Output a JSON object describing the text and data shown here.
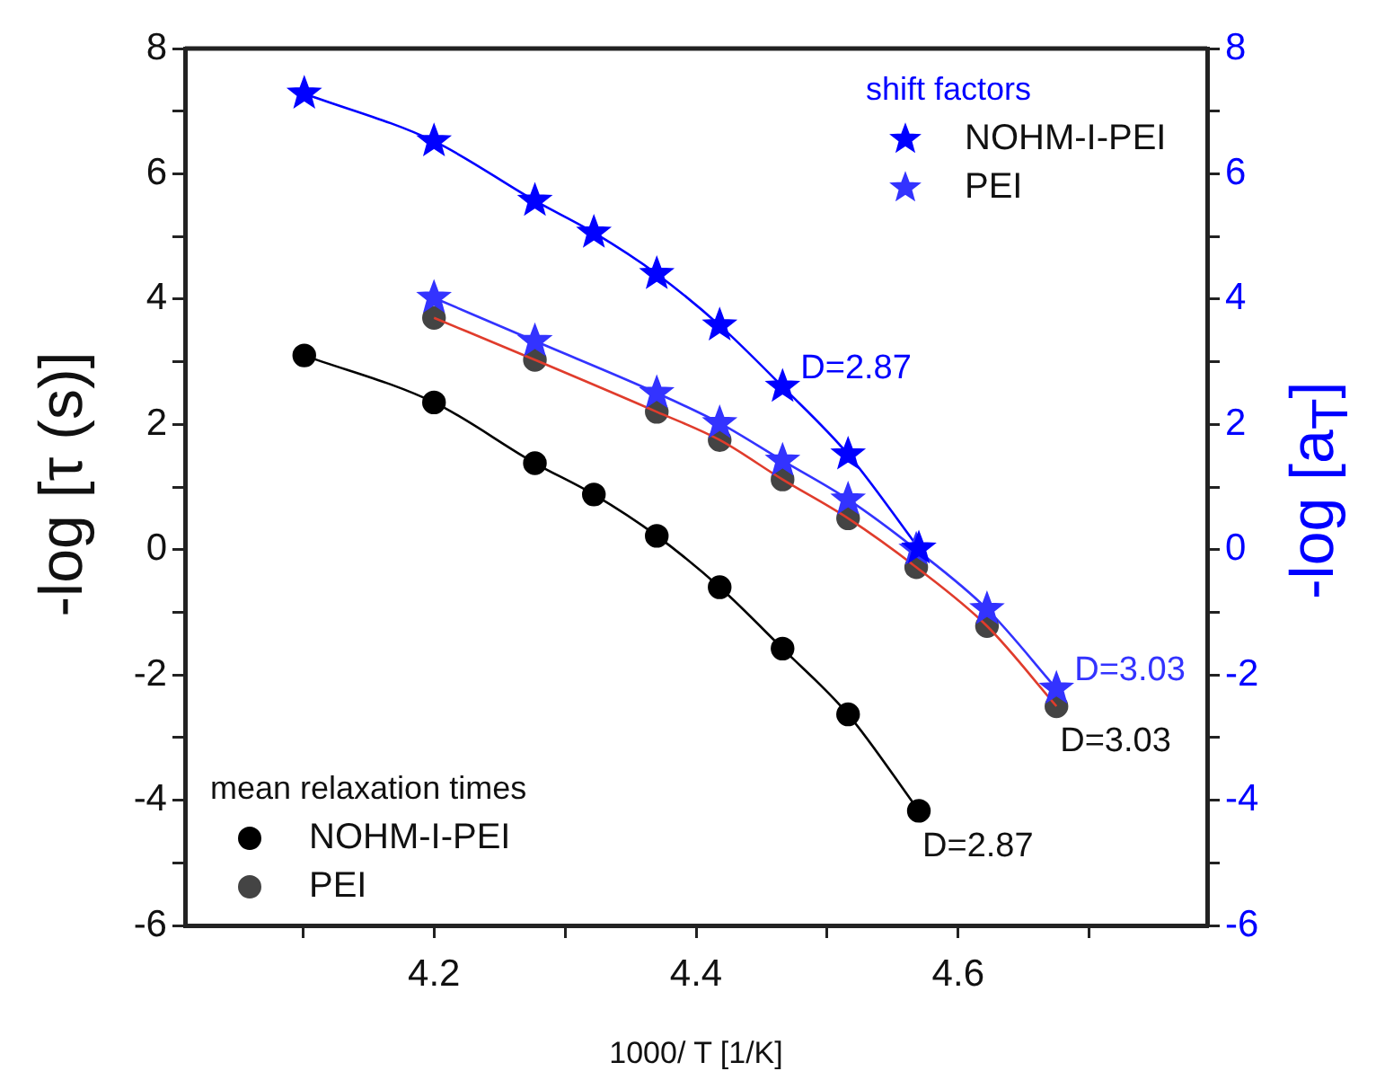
{
  "chart_data": {
    "type": "scatter",
    "xlabel": "1000/ T [1/K]",
    "ylabel": "-log [τ (s)]",
    "y2label": "-log [a$_{T}$]",
    "legend_title": [
      "mean relaxation times",
      "shift factors"
    ],
    "legend": [
      "bottom left",
      "top right"
    ],
    "xlim": [
      4.01,
      4.79
    ],
    "xticks": [
      {
        "value": 4.1,
        "label": null
      },
      4.2,
      {
        "value": 4.3,
        "label": null
      },
      4.4,
      {
        "value": 4.5,
        "label": null
      },
      4.6,
      {
        "value": 4.7,
        "label": null
      }
    ],
    "ylim": [
      -6,
      8
    ],
    "yticks": [
      -6,
      {
        "value": -5,
        "label": null
      },
      -4,
      {
        "value": -3,
        "label": null
      },
      -2,
      {
        "value": -1,
        "label": null
      },
      0,
      {
        "value": 1,
        "label": null
      },
      2,
      {
        "value": 3,
        "label": null
      },
      4,
      {
        "value": 5,
        "label": null
      },
      6,
      {
        "value": 7,
        "label": null
      },
      8
    ],
    "y2lim": [
      -6,
      8
    ],
    "y2ticks": [
      -6,
      {
        "value": -5,
        "label": null
      },
      -4,
      {
        "value": -3,
        "label": null
      },
      -2,
      {
        "value": -1,
        "label": null
      },
      0,
      {
        "value": 1,
        "label": null
      },
      2,
      {
        "value": 3,
        "label": null
      },
      4,
      {
        "value": 5,
        "label": null
      },
      6,
      {
        "value": 7,
        "label": null
      },
      8
    ],
    "grid": false,
    "series": [
      {
        "type": "line",
        "marker": "none",
        "color": "#000000",
        "axis": "y",
        "x": [
          4.101,
          4.2,
          4.277,
          4.322,
          4.37,
          4.418,
          4.466,
          4.516,
          4.57
        ],
        "values": [
          3.1,
          2.35,
          1.38,
          0.88,
          0.22,
          -0.6,
          -1.58,
          -2.63,
          -4.17
        ]
      },
      {
        "type": "line",
        "marker": "none",
        "color": "#e03c2c",
        "axis": "y",
        "x": [
          4.2,
          4.277,
          4.37,
          4.418,
          4.466,
          4.516,
          4.568,
          4.622,
          4.675
        ],
        "values": [
          3.7,
          3.03,
          2.2,
          1.75,
          1.12,
          0.5,
          -0.28,
          -1.22,
          -2.5
        ]
      },
      {
        "name": "NOHM-I-PEI",
        "type": "scatter",
        "marker": "circle",
        "color": "#000000",
        "axis": "y",
        "x": [
          4.101,
          4.2,
          4.277,
          4.322,
          4.37,
          4.418,
          4.466,
          4.516,
          4.57
        ],
        "values": [
          3.1,
          2.35,
          1.38,
          0.88,
          0.22,
          -0.6,
          -1.58,
          -2.63,
          -4.17
        ]
      },
      {
        "name": "PEI",
        "type": "scatter",
        "marker": "circle",
        "color": "#444444",
        "axis": "y",
        "x": [
          4.2,
          4.277,
          4.37,
          4.418,
          4.466,
          4.516,
          4.568,
          4.622,
          4.675
        ],
        "values": [
          3.7,
          3.03,
          2.2,
          1.75,
          1.12,
          0.5,
          -0.28,
          -1.22,
          -2.5
        ]
      },
      {
        "name": "NOHM-I-PEI",
        "type": "line",
        "marker": "star",
        "color": "#0000ff",
        "axis": "y2",
        "x": [
          4.101,
          4.2,
          4.277,
          4.322,
          4.37,
          4.418,
          4.466,
          4.516,
          4.57
        ],
        "values": [
          7.28,
          6.52,
          5.57,
          5.06,
          4.4,
          3.58,
          2.6,
          1.52,
          0.02
        ]
      },
      {
        "name": "PEI",
        "type": "line",
        "marker": "star",
        "color": "#3333ff",
        "axis": "y2",
        "x": [
          4.2,
          4.277,
          4.37,
          4.418,
          4.466,
          4.516,
          4.568,
          4.622,
          4.675
        ],
        "values": [
          4.02,
          3.33,
          2.5,
          2.02,
          1.42,
          0.8,
          0.0,
          -0.95,
          -2.22
        ]
      }
    ],
    "annotations": [
      {
        "text": "D=2.87",
        "x": 4.466,
        "y": 2.6
      },
      {
        "text": "D=3.03",
        "x": 4.675,
        "y": -2.22
      },
      {
        "text": "D=3.03",
        "x": 4.675,
        "y": -2.5
      },
      {
        "text": "D=2.87",
        "x": 4.57,
        "y": -4.17
      }
    ]
  }
}
